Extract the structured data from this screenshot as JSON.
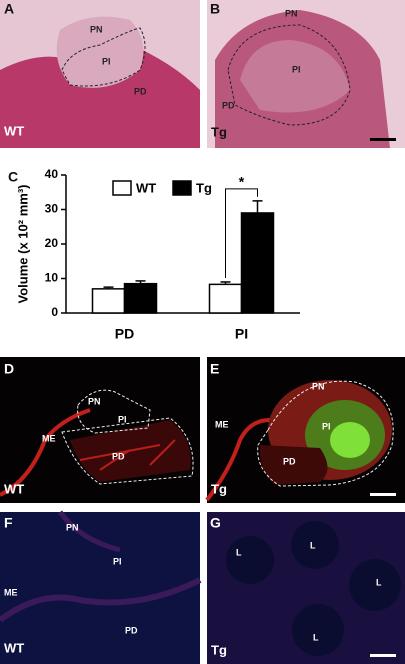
{
  "panels": [
    {
      "letter": "A",
      "labels": [
        "PN",
        "PI",
        "PD"
      ],
      "genotype": "WT"
    },
    {
      "letter": "B",
      "labels": [
        "PN",
        "PI",
        "PD"
      ],
      "genotype": "Tg"
    },
    {
      "letter": "D",
      "labels": [
        "PN",
        "PI",
        "ME",
        "PD"
      ],
      "genotype": "WT"
    },
    {
      "letter": "E",
      "labels": [
        "PN",
        "ME",
        "PI",
        "PD"
      ],
      "genotype": "Tg"
    },
    {
      "letter": "F",
      "labels": [
        "PN",
        "PI",
        "ME",
        "PD"
      ],
      "genotype": "WT"
    },
    {
      "letter": "G",
      "labels": [
        "L",
        "L",
        "L",
        "L"
      ],
      "genotype": "Tg"
    }
  ],
  "chart_data": {
    "type": "bar",
    "panel": "C",
    "y_label": "Volume (x 10² mm³)",
    "categories": [
      "PD",
      "PI"
    ],
    "series": [
      {
        "name": "WT",
        "color": "#ffffff",
        "values": [
          7,
          8.3
        ],
        "errors": [
          0.5,
          0.7
        ]
      },
      {
        "name": "Tg",
        "color": "#000000",
        "values": [
          8.5,
          29
        ],
        "errors": [
          0.8,
          3.5
        ]
      }
    ],
    "ylim": [
      0,
      40
    ],
    "yticks": [
      0,
      10,
      20,
      30,
      40
    ],
    "annotation": "*"
  }
}
